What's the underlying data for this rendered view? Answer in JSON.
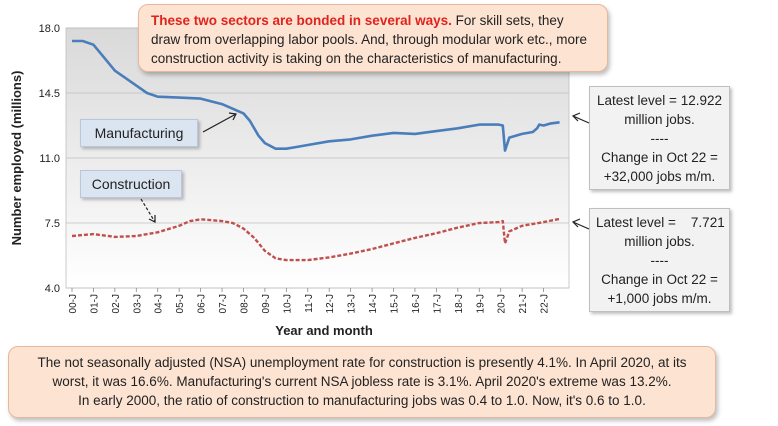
{
  "chart_data": {
    "type": "line",
    "xlabel": "Year and month",
    "ylabel": "Number employed (millions)",
    "ylim": [
      4.0,
      18.0
    ],
    "yticks": [
      "4.0",
      "7.5",
      "11.0",
      "14.5",
      "18.0"
    ],
    "xticks": [
      "00-J",
      "01-J",
      "02-J",
      "03-J",
      "04-J",
      "05-J",
      "06-J",
      "07-J",
      "08-J",
      "09-J",
      "10-J",
      "11-J",
      "12-J",
      "13-J",
      "14-J",
      "15-J",
      "16-J",
      "17-J",
      "18-J",
      "19-J",
      "20-J",
      "21-J",
      "22-J"
    ],
    "series": [
      {
        "name": "Manufacturing",
        "color": "#4a7ebb",
        "style": "solid",
        "points": [
          [
            0,
            17.3
          ],
          [
            0.5,
            17.3
          ],
          [
            1,
            17.1
          ],
          [
            1.5,
            16.4
          ],
          [
            2,
            15.7
          ],
          [
            2.5,
            15.3
          ],
          [
            3,
            14.9
          ],
          [
            3.5,
            14.5
          ],
          [
            4,
            14.3
          ],
          [
            5,
            14.25
          ],
          [
            6,
            14.2
          ],
          [
            7,
            13.9
          ],
          [
            8,
            13.4
          ],
          [
            8.3,
            13.0
          ],
          [
            8.7,
            12.2
          ],
          [
            9,
            11.8
          ],
          [
            9.5,
            11.5
          ],
          [
            10,
            11.5
          ],
          [
            10.5,
            11.6
          ],
          [
            11,
            11.7
          ],
          [
            12,
            11.9
          ],
          [
            13,
            12.0
          ],
          [
            14,
            12.2
          ],
          [
            15,
            12.35
          ],
          [
            16,
            12.3
          ],
          [
            17,
            12.45
          ],
          [
            18,
            12.6
          ],
          [
            19,
            12.8
          ],
          [
            19.9,
            12.8
          ],
          [
            20.1,
            12.75
          ],
          [
            20.2,
            11.4
          ],
          [
            20.4,
            12.1
          ],
          [
            20.7,
            12.2
          ],
          [
            21,
            12.3
          ],
          [
            21.5,
            12.4
          ],
          [
            21.7,
            12.6
          ],
          [
            21.8,
            12.8
          ],
          [
            22,
            12.75
          ],
          [
            22.3,
            12.85
          ],
          [
            22.75,
            12.92
          ]
        ]
      },
      {
        "name": "Construction",
        "color": "#c0504d",
        "style": "dashed",
        "points": [
          [
            0,
            6.8
          ],
          [
            1,
            6.9
          ],
          [
            2,
            6.75
          ],
          [
            3,
            6.8
          ],
          [
            4,
            7.0
          ],
          [
            5,
            7.35
          ],
          [
            5.5,
            7.6
          ],
          [
            6,
            7.7
          ],
          [
            7,
            7.6
          ],
          [
            7.5,
            7.5
          ],
          [
            8,
            7.2
          ],
          [
            8.5,
            6.7
          ],
          [
            9,
            6.0
          ],
          [
            9.5,
            5.6
          ],
          [
            10,
            5.5
          ],
          [
            11,
            5.5
          ],
          [
            12,
            5.65
          ],
          [
            13,
            5.85
          ],
          [
            14,
            6.1
          ],
          [
            15,
            6.4
          ],
          [
            16,
            6.7
          ],
          [
            17,
            6.95
          ],
          [
            18,
            7.25
          ],
          [
            19,
            7.5
          ],
          [
            19.9,
            7.55
          ],
          [
            20.1,
            7.6
          ],
          [
            20.2,
            6.4
          ],
          [
            20.4,
            7.05
          ],
          [
            20.7,
            7.2
          ],
          [
            21,
            7.35
          ],
          [
            22,
            7.55
          ],
          [
            22.75,
            7.721
          ]
        ]
      }
    ]
  },
  "top_callout": {
    "highlight": "These two sectors are bonded in several ways.",
    "text": " For skill sets, they draw from overlapping labor pools. And, through modular work etc., more construction activity is taking on the characteristics of manufacturing."
  },
  "manufacturing_box": {
    "label": "Manufacturing"
  },
  "construction_box": {
    "label": "Construction"
  },
  "manufacturing_info": {
    "line1": "Latest level = 12.922",
    "line2": "million jobs.",
    "line3": "----",
    "line4": "Change in Oct 22 =",
    "line5": "+32,000 jobs m/m."
  },
  "construction_info": {
    "line1": "Latest level =    7.721",
    "line2": "million jobs.",
    "line3": "----",
    "line4": "Change in Oct 22 =",
    "line5": "+1,000 jobs m/m."
  },
  "bottom_callout": {
    "line1": "The not seasonally adjusted (NSA) unemployment rate for construction is presently 4.1%. In April 2020, at its",
    "line2": "worst, it was 16.6%. Manufacturing's current NSA jobless rate is 3.1%. April 2020's extreme was 13.2%.",
    "line3": "In early 2000, the ratio of construction to manufacturing jobs was 0.4 to 1.0. Now, it's 0.6 to 1.0."
  }
}
